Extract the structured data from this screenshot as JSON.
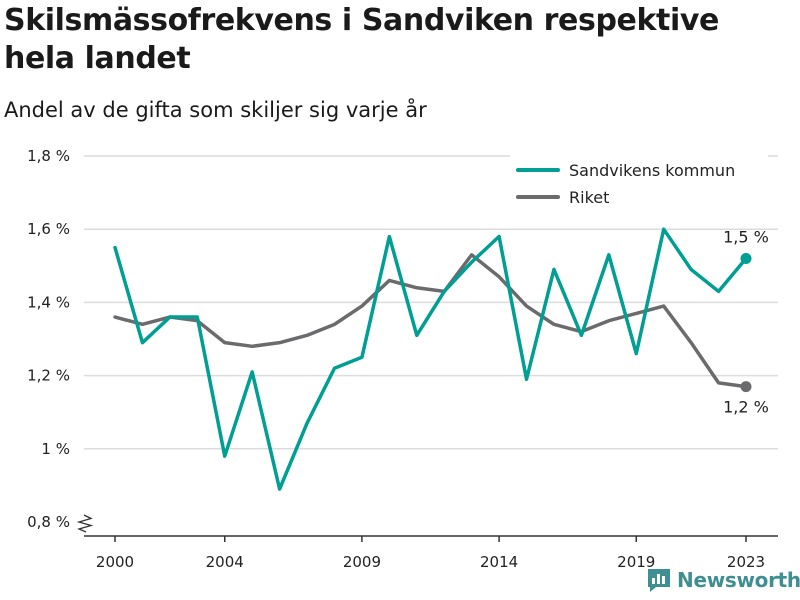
{
  "title": "Skilsmässofrekvens i Sandviken respektive hela landet",
  "subtitle": "Andel av de gifta som skiljer sig varje år",
  "brand": {
    "name": "Newsworthy",
    "icon": "bar-chart-logo-icon"
  },
  "colors": {
    "sandviken": "#009e93",
    "riket": "#6b6b6e",
    "grid": "#dcdcdc",
    "brand": "#3f8f92"
  },
  "chart_data": {
    "type": "line",
    "x": [
      2000,
      2001,
      2002,
      2003,
      2004,
      2005,
      2006,
      2007,
      2008,
      2009,
      2010,
      2011,
      2012,
      2013,
      2014,
      2015,
      2016,
      2017,
      2018,
      2019,
      2020,
      2021,
      2022,
      2023
    ],
    "x_ticks": [
      2000,
      2004,
      2009,
      2014,
      2019,
      2023
    ],
    "y_ticks": [
      0.8,
      1.0,
      1.2,
      1.4,
      1.6,
      1.8
    ],
    "y_tick_labels": [
      "0,8 %",
      "1 %",
      "1,2 %",
      "1,4 %",
      "1,6 %",
      "1,8 %"
    ],
    "ylim": [
      0.8,
      1.8
    ],
    "xlim": [
      2000,
      2023
    ],
    "grid": true,
    "axis_break": true,
    "legend": {
      "position": "top-right"
    },
    "series": [
      {
        "name": "Sandvikens kommun",
        "values": [
          1.55,
          1.29,
          1.36,
          1.36,
          0.98,
          1.21,
          0.89,
          1.07,
          1.22,
          1.25,
          1.58,
          1.31,
          1.43,
          1.51,
          1.58,
          1.19,
          1.49,
          1.31,
          1.53,
          1.26,
          1.6,
          1.49,
          1.43,
          1.52
        ],
        "end_label": "1,5 %"
      },
      {
        "name": "Riket",
        "values": [
          1.36,
          1.34,
          1.36,
          1.35,
          1.29,
          1.28,
          1.29,
          1.31,
          1.34,
          1.39,
          1.46,
          1.44,
          1.43,
          1.53,
          1.47,
          1.39,
          1.34,
          1.32,
          1.35,
          1.37,
          1.39,
          1.29,
          1.18,
          1.17
        ],
        "end_label": "1,2 %"
      }
    ]
  }
}
